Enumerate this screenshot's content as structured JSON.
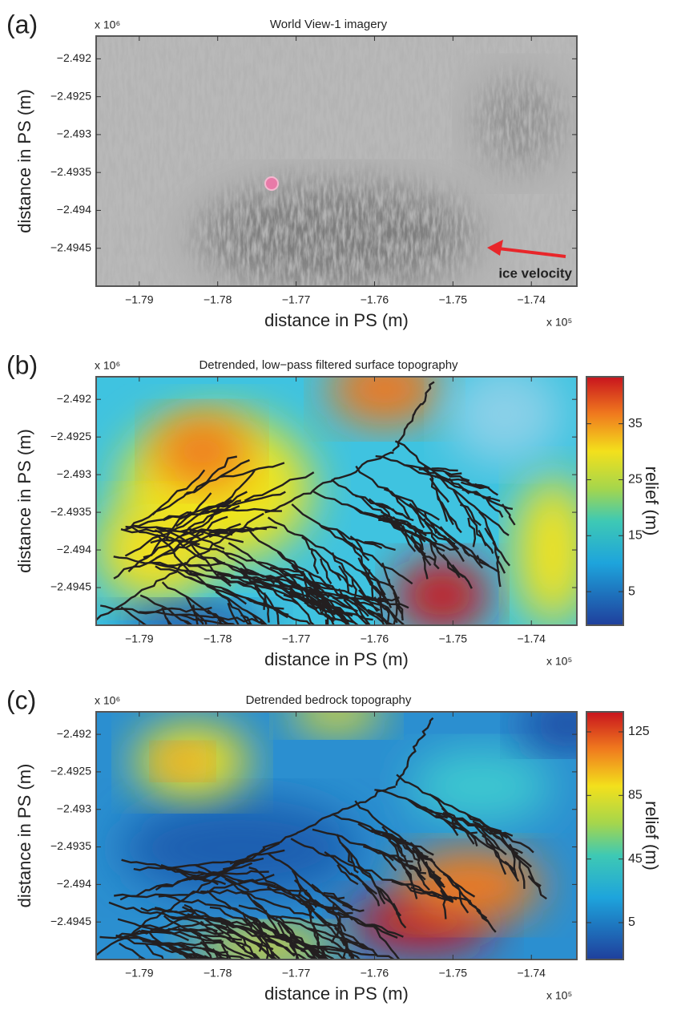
{
  "chart_data": [
    {
      "type": "image",
      "panel_label": "(a)",
      "title": "World View-1 imagery",
      "xlabel": "distance in PS (m)",
      "ylabel": "distance in PS (m)",
      "x_multiplier": "x 10⁵",
      "y_multiplier": "x 10⁶",
      "annotation": "ice velocity",
      "xlim": [
        -1.7955,
        -1.7342
      ],
      "ylim": [
        -2.495,
        -2.4917
      ],
      "xticks": [
        {
          "value": -1.79,
          "label": "−1.79"
        },
        {
          "value": -1.78,
          "label": "−1.78"
        },
        {
          "value": -1.77,
          "label": "−1.77"
        },
        {
          "value": -1.76,
          "label": "−1.76"
        },
        {
          "value": -1.75,
          "label": "−1.75"
        },
        {
          "value": -1.74,
          "label": "−1.74"
        }
      ],
      "yticks": [
        {
          "value": -2.492,
          "label": "−2.492"
        },
        {
          "value": -2.4925,
          "label": "−2.4925"
        },
        {
          "value": -2.493,
          "label": "−2.493"
        },
        {
          "value": -2.4935,
          "label": "−2.4935"
        },
        {
          "value": -2.494,
          "label": "−2.494"
        },
        {
          "value": -2.4945,
          "label": "−2.4945"
        }
      ]
    },
    {
      "type": "heatmap",
      "panel_label": "(b)",
      "title": "Detrended, low−pass filtered surface topography",
      "xlabel": "distance in PS (m)",
      "ylabel": "distance in PS (m)",
      "x_multiplier": "x 10⁵",
      "y_multiplier": "x 10⁶",
      "colorbar_label": "relief (m)",
      "xlim": [
        -1.7955,
        -1.7342
      ],
      "ylim": [
        -2.495,
        -2.4917
      ],
      "xticks": [
        {
          "value": -1.79,
          "label": "−1.79"
        },
        {
          "value": -1.78,
          "label": "−1.78"
        },
        {
          "value": -1.77,
          "label": "−1.77"
        },
        {
          "value": -1.76,
          "label": "−1.76"
        },
        {
          "value": -1.75,
          "label": "−1.75"
        },
        {
          "value": -1.74,
          "label": "−1.74"
        }
      ],
      "yticks": [
        {
          "value": -2.492,
          "label": "−2.492"
        },
        {
          "value": -2.4925,
          "label": "−2.4925"
        },
        {
          "value": -2.493,
          "label": "−2.493"
        },
        {
          "value": -2.4935,
          "label": "−2.4935"
        },
        {
          "value": -2.494,
          "label": "−2.494"
        },
        {
          "value": -2.4945,
          "label": "−2.4945"
        }
      ],
      "zlim": [
        -1,
        43.4
      ],
      "zticks": [
        5,
        15,
        25,
        35
      ]
    },
    {
      "type": "heatmap",
      "panel_label": "(c)",
      "title": "Detrended bedrock topography",
      "xlabel": "distance in PS (m)",
      "ylabel": "distance in PS (m)",
      "x_multiplier": "x 10⁵",
      "y_multiplier": "x 10⁶",
      "colorbar_label": "relief (m)",
      "xlim": [
        -1.7955,
        -1.7342
      ],
      "ylim": [
        -2.495,
        -2.4917
      ],
      "xticks": [
        {
          "value": -1.79,
          "label": "−1.79"
        },
        {
          "value": -1.78,
          "label": "−1.78"
        },
        {
          "value": -1.77,
          "label": "−1.77"
        },
        {
          "value": -1.76,
          "label": "−1.76"
        },
        {
          "value": -1.75,
          "label": "−1.75"
        },
        {
          "value": -1.74,
          "label": "−1.74"
        }
      ],
      "yticks": [
        {
          "value": -2.492,
          "label": "−2.492"
        },
        {
          "value": -2.4925,
          "label": "−2.4925"
        },
        {
          "value": -2.493,
          "label": "−2.493"
        },
        {
          "value": -2.4935,
          "label": "−2.4935"
        },
        {
          "value": -2.494,
          "label": "−2.494"
        },
        {
          "value": -2.4945,
          "label": "−2.4945"
        }
      ],
      "zlim": [
        -18.2,
        137.6
      ],
      "zticks": [
        5,
        45,
        85,
        125
      ]
    }
  ]
}
